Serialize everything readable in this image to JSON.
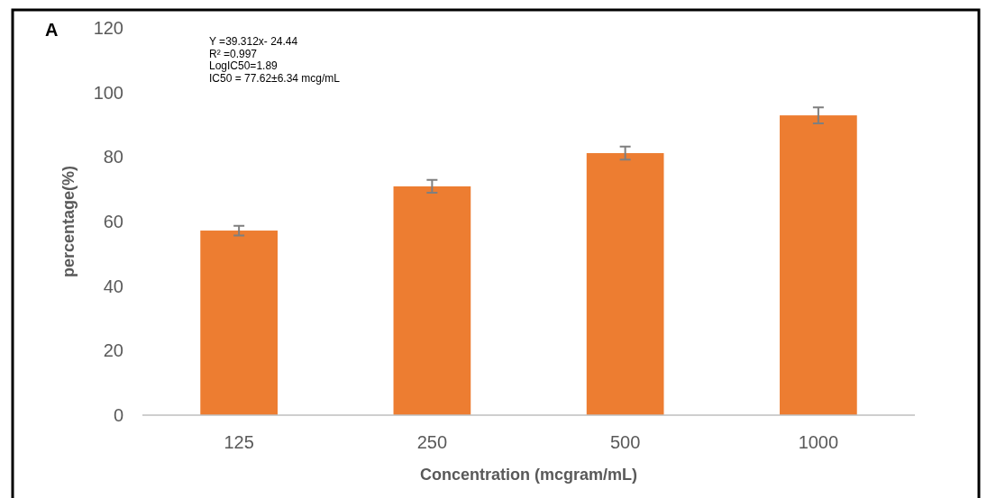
{
  "chart_data": {
    "type": "bar",
    "xlabel": "Concentration (mcgram/mL)",
    "ylabel": "percentage(%)",
    "categories": [
      "125",
      "250",
      "500",
      "1000"
    ],
    "values": [
      57.2,
      70.9,
      81.2,
      92.9
    ],
    "errors": [
      1.5,
      2,
      2,
      2.5
    ],
    "color": "#ed7d31",
    "ylim": [
      0,
      120
    ],
    "yticks": [
      0,
      20,
      40,
      60,
      80,
      100,
      120
    ],
    "annotations": [
      "A",
      "Y =39.312x- 24.44",
      "R² =0.997",
      "LogIC50=1.89",
      "IC50 = 77.62±6.34 mcg/mL"
    ]
  }
}
